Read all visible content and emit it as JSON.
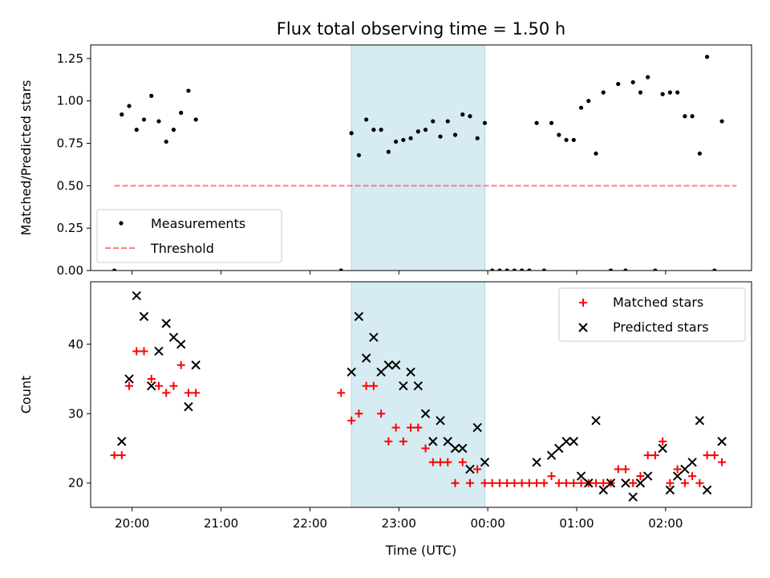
{
  "chart_data": [
    {
      "type": "scatter",
      "title": "Flux total observing time = 1.50 h",
      "ylabel": "Matched/Predicted stars",
      "xlabel": "",
      "xlim": [
        "19:32",
        "02:58"
      ],
      "ylim": [
        0,
        1.33
      ],
      "yticks": [
        "0.00",
        "0.25",
        "0.50",
        "0.75",
        "1.00",
        "1.25"
      ],
      "highlight_span": {
        "start": "22:28",
        "end": "23:58",
        "color": "#add8e6"
      },
      "legend": {
        "placement": "lower-left",
        "entries": [
          "Measurements",
          "Threshold"
        ]
      },
      "threshold": {
        "name": "Threshold",
        "y": 0.5,
        "x": [
          "19:48",
          "02:48"
        ],
        "color": "#ff7f7f",
        "dash": "dashed"
      },
      "series": [
        {
          "name": "Measurements",
          "color": "#000000",
          "marker": "dot",
          "points": [
            [
              "19:48",
              0
            ],
            [
              "19:53",
              0.92
            ],
            [
              "19:58",
              0.97
            ],
            [
              "20:03",
              0.83
            ],
            [
              "20:08",
              0.89
            ],
            [
              "20:13",
              1.03
            ],
            [
              "20:18",
              0.88
            ],
            [
              "20:23",
              0.76
            ],
            [
              "20:28",
              0.83
            ],
            [
              "20:33",
              0.93
            ],
            [
              "20:38",
              1.06
            ],
            [
              "20:43",
              0.89
            ],
            [
              "22:21",
              0
            ],
            [
              "22:28",
              0.81
            ],
            [
              "22:33",
              0.68
            ],
            [
              "22:38",
              0.89
            ],
            [
              "22:43",
              0.83
            ],
            [
              "22:48",
              0.83
            ],
            [
              "22:53",
              0.7
            ],
            [
              "22:58",
              0.76
            ],
            [
              "23:03",
              0.77
            ],
            [
              "23:08",
              0.78
            ],
            [
              "23:13",
              0.82
            ],
            [
              "23:18",
              0.83
            ],
            [
              "23:23",
              0.88
            ],
            [
              "23:28",
              0.79
            ],
            [
              "23:33",
              0.88
            ],
            [
              "23:38",
              0.8
            ],
            [
              "23:43",
              0.92
            ],
            [
              "23:48",
              0.91
            ],
            [
              "23:53",
              0.78
            ],
            [
              "23:58",
              0.87
            ],
            [
              "00:03",
              0
            ],
            [
              "00:08",
              0
            ],
            [
              "00:13",
              0
            ],
            [
              "00:18",
              0
            ],
            [
              "00:23",
              0
            ],
            [
              "00:28",
              0
            ],
            [
              "00:33",
              0.87
            ],
            [
              "00:38",
              0
            ],
            [
              "00:43",
              0.87
            ],
            [
              "00:48",
              0.8
            ],
            [
              "00:53",
              0.77
            ],
            [
              "00:58",
              0.77
            ],
            [
              "01:03",
              0.96
            ],
            [
              "01:08",
              1.0
            ],
            [
              "01:13",
              0.69
            ],
            [
              "01:18",
              1.05
            ],
            [
              "01:23",
              0
            ],
            [
              "01:28",
              1.1
            ],
            [
              "01:33",
              0
            ],
            [
              "01:38",
              1.11
            ],
            [
              "01:43",
              1.05
            ],
            [
              "01:48",
              1.14
            ],
            [
              "01:53",
              0
            ],
            [
              "01:58",
              1.04
            ],
            [
              "02:03",
              1.05
            ],
            [
              "02:08",
              1.05
            ],
            [
              "02:13",
              0.91
            ],
            [
              "02:18",
              0.91
            ],
            [
              "02:23",
              0.69
            ],
            [
              "02:28",
              1.26
            ],
            [
              "02:33",
              0
            ],
            [
              "02:38",
              0.88
            ]
          ]
        }
      ]
    },
    {
      "type": "scatter",
      "title": "",
      "xlabel": "Time (UTC)",
      "ylabel": "Count",
      "xlim": [
        "19:32",
        "02:58"
      ],
      "ylim": [
        16.5,
        49
      ],
      "xticks": [
        "20:00",
        "21:00",
        "22:00",
        "23:00",
        "00:00",
        "01:00",
        "02:00"
      ],
      "yticks": [
        "20",
        "30",
        "40"
      ],
      "highlight_span": {
        "start": "22:28",
        "end": "23:58",
        "color": "#add8e6"
      },
      "legend": {
        "placement": "upper-right",
        "entries": [
          "Matched stars",
          "Predicted stars"
        ]
      },
      "series": [
        {
          "name": "Matched stars",
          "color": "#ff0000",
          "marker": "plus",
          "points": [
            [
              "19:48",
              24
            ],
            [
              "19:53",
              24
            ],
            [
              "19:58",
              34
            ],
            [
              "20:03",
              39
            ],
            [
              "20:08",
              39
            ],
            [
              "20:13",
              35
            ],
            [
              "20:18",
              34
            ],
            [
              "20:23",
              33
            ],
            [
              "20:28",
              34
            ],
            [
              "20:33",
              37
            ],
            [
              "20:38",
              33
            ],
            [
              "20:43",
              33
            ],
            [
              "22:21",
              33
            ],
            [
              "22:28",
              29
            ],
            [
              "22:33",
              30
            ],
            [
              "22:38",
              34
            ],
            [
              "22:43",
              34
            ],
            [
              "22:48",
              30
            ],
            [
              "22:53",
              26
            ],
            [
              "22:58",
              28
            ],
            [
              "23:03",
              26
            ],
            [
              "23:08",
              28
            ],
            [
              "23:13",
              28
            ],
            [
              "23:18",
              25
            ],
            [
              "23:23",
              23
            ],
            [
              "23:28",
              23
            ],
            [
              "23:33",
              23
            ],
            [
              "23:38",
              20
            ],
            [
              "23:43",
              23
            ],
            [
              "23:48",
              20
            ],
            [
              "23:53",
              22
            ],
            [
              "23:58",
              20
            ],
            [
              "00:03",
              20
            ],
            [
              "00:08",
              20
            ],
            [
              "00:13",
              20
            ],
            [
              "00:18",
              20
            ],
            [
              "00:23",
              20
            ],
            [
              "00:28",
              20
            ],
            [
              "00:33",
              20
            ],
            [
              "00:38",
              20
            ],
            [
              "00:43",
              21
            ],
            [
              "00:48",
              20
            ],
            [
              "00:53",
              20
            ],
            [
              "00:58",
              20
            ],
            [
              "01:03",
              20
            ],
            [
              "01:08",
              20
            ],
            [
              "01:13",
              20
            ],
            [
              "01:18",
              20
            ],
            [
              "01:23",
              20
            ],
            [
              "01:28",
              22
            ],
            [
              "01:33",
              22
            ],
            [
              "01:38",
              20
            ],
            [
              "01:43",
              21
            ],
            [
              "01:48",
              24
            ],
            [
              "01:53",
              24
            ],
            [
              "01:58",
              26
            ],
            [
              "02:03",
              20
            ],
            [
              "02:08",
              22
            ],
            [
              "02:13",
              20
            ],
            [
              "02:18",
              21
            ],
            [
              "02:23",
              20
            ],
            [
              "02:28",
              24
            ],
            [
              "02:33",
              24
            ],
            [
              "02:38",
              23
            ]
          ]
        },
        {
          "name": "Predicted stars",
          "color": "#000000",
          "marker": "x",
          "points": [
            [
              "19:53",
              26
            ],
            [
              "19:58",
              35
            ],
            [
              "20:03",
              47
            ],
            [
              "20:08",
              44
            ],
            [
              "20:13",
              34
            ],
            [
              "20:18",
              39
            ],
            [
              "20:23",
              43
            ],
            [
              "20:28",
              41
            ],
            [
              "20:33",
              40
            ],
            [
              "20:38",
              31
            ],
            [
              "20:43",
              37
            ],
            [
              "22:28",
              36
            ],
            [
              "22:33",
              44
            ],
            [
              "22:38",
              38
            ],
            [
              "22:43",
              41
            ],
            [
              "22:48",
              36
            ],
            [
              "22:53",
              37
            ],
            [
              "22:58",
              37
            ],
            [
              "23:03",
              34
            ],
            [
              "23:08",
              36
            ],
            [
              "23:13",
              34
            ],
            [
              "23:18",
              30
            ],
            [
              "23:23",
              26
            ],
            [
              "23:28",
              29
            ],
            [
              "23:33",
              26
            ],
            [
              "23:38",
              25
            ],
            [
              "23:43",
              25
            ],
            [
              "23:48",
              22
            ],
            [
              "23:53",
              28
            ],
            [
              "23:58",
              23
            ],
            [
              "00:33",
              23
            ],
            [
              "00:43",
              24
            ],
            [
              "00:48",
              25
            ],
            [
              "00:53",
              26
            ],
            [
              "00:58",
              26
            ],
            [
              "01:03",
              21
            ],
            [
              "01:08",
              20
            ],
            [
              "01:13",
              29
            ],
            [
              "01:18",
              19
            ],
            [
              "01:23",
              20
            ],
            [
              "01:33",
              20
            ],
            [
              "01:38",
              18
            ],
            [
              "01:43",
              20
            ],
            [
              "01:48",
              21
            ],
            [
              "01:58",
              25
            ],
            [
              "02:03",
              19
            ],
            [
              "02:08",
              21
            ],
            [
              "02:13",
              22
            ],
            [
              "02:18",
              23
            ],
            [
              "02:23",
              29
            ],
            [
              "02:28",
              19
            ],
            [
              "02:38",
              26
            ]
          ]
        }
      ]
    }
  ]
}
